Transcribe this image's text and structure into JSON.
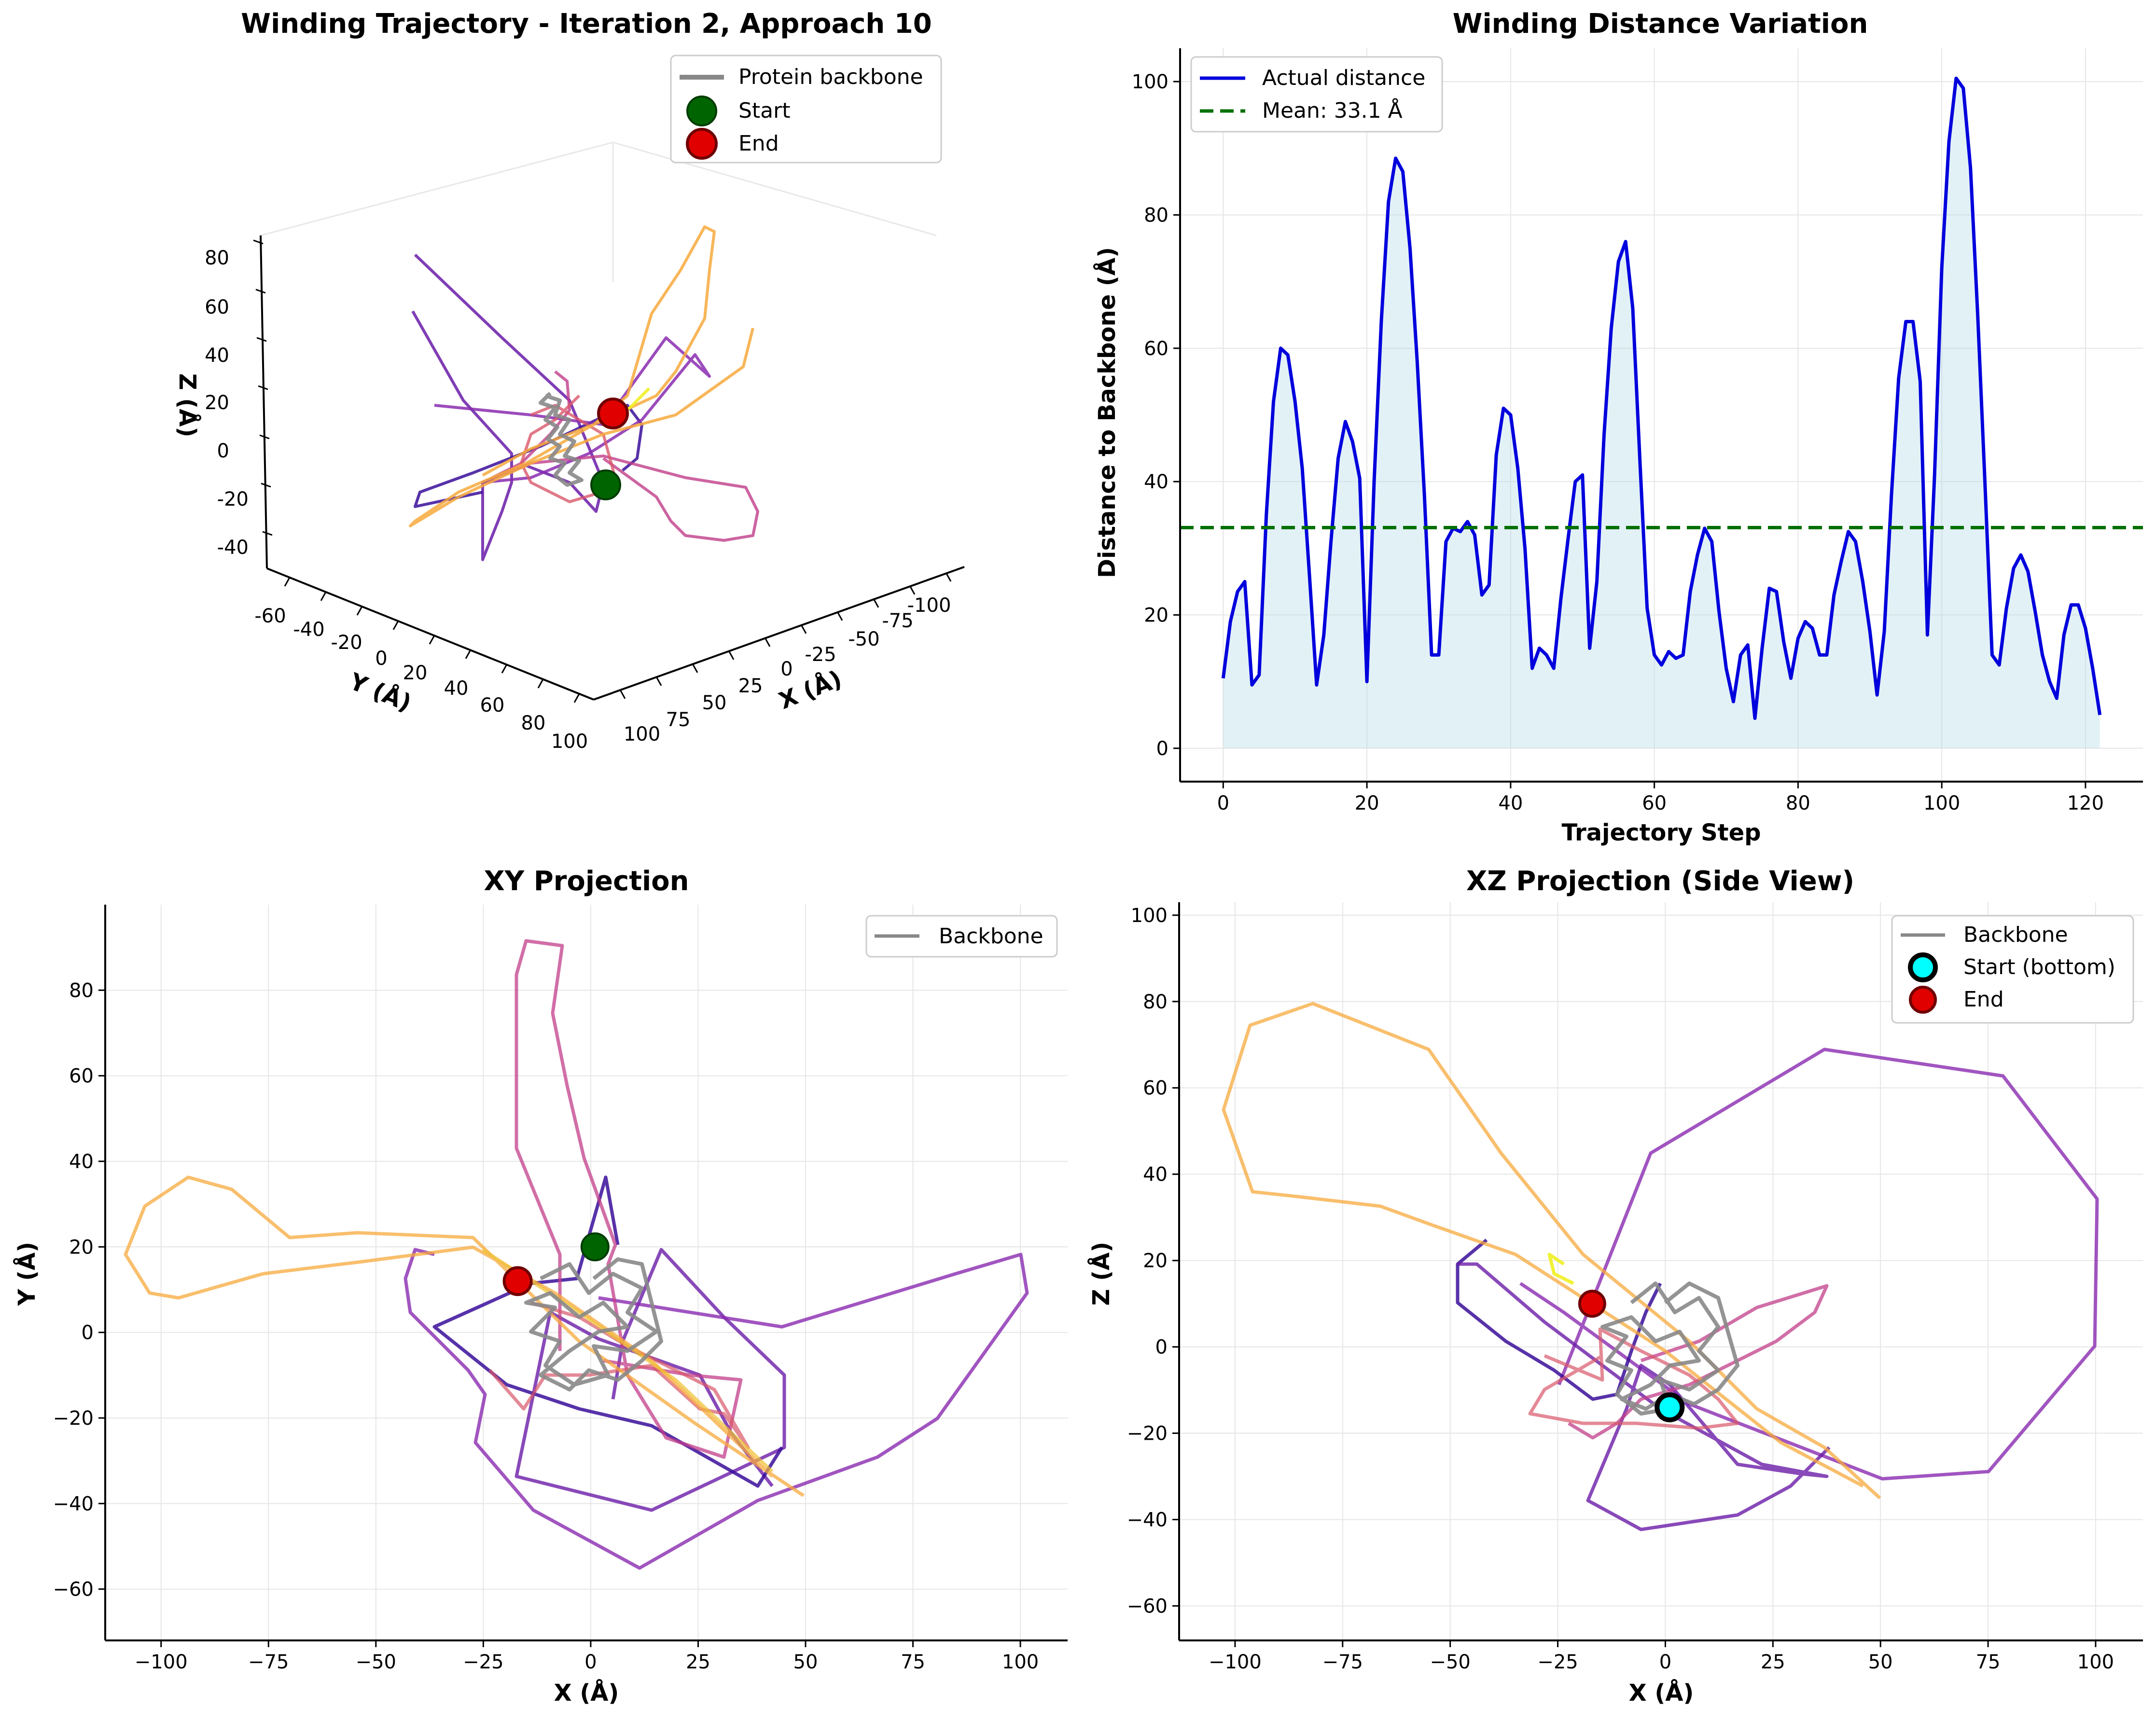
{
  "panel3d": {
    "title": "Winding Trajectory - Iteration 2, Approach 10",
    "xlabel": "X (Å)",
    "ylabel": "Y (Å)",
    "zlabel": "Z (Å)",
    "xticks": [
      -100,
      -75,
      -50,
      -25,
      0,
      25,
      50,
      75,
      100
    ],
    "yticks": [
      -60,
      -40,
      -20,
      0,
      20,
      40,
      60,
      80,
      100
    ],
    "zticks": [
      -40,
      -20,
      0,
      20,
      40,
      60,
      80
    ],
    "legend": {
      "backbone": "Protein backbone",
      "start": "Start",
      "end": "End"
    },
    "colors": {
      "backbone": "#888888",
      "start": "#006400",
      "end": "#e00000"
    }
  },
  "panelDist": {
    "title": "Winding Distance Variation",
    "xlabel": "Trajectory Step",
    "ylabel": "Distance to Backbone (Å)",
    "legend": {
      "actual": "Actual distance",
      "mean": "Mean: 33.1 Å"
    },
    "colors": {
      "line": "#0000dd",
      "fill": "#add8e6",
      "mean": "#007000"
    }
  },
  "panelXY": {
    "title": "XY Projection",
    "xlabel": "X (Å)",
    "ylabel": "Y (Å)",
    "legend": {
      "backbone": "Backbone"
    }
  },
  "panelXZ": {
    "title": "XZ Projection (Side View)",
    "xlabel": "X (Å)",
    "ylabel": "Z (Å)",
    "legend": {
      "backbone": "Backbone",
      "start": "Start (bottom)",
      "end": "End"
    },
    "colors": {
      "start": "#00ffff",
      "end": "#e00000"
    }
  },
  "chart_data": [
    {
      "type": "line",
      "title": "Winding Trajectory - Iteration 2, Approach 10",
      "projection": "3d",
      "xlabel": "X (Å)",
      "ylabel": "Y (Å)",
      "zlabel": "Z (Å)",
      "xlim": [
        -105,
        105
      ],
      "ylim": [
        -65,
        100
      ],
      "zlim": [
        -45,
        90
      ],
      "series": [
        {
          "name": "Protein backbone",
          "note": "grey coil near origin"
        },
        {
          "name": "Start",
          "x": [
            1
          ],
          "y": [
            20
          ],
          "z": [
            -14
          ]
        },
        {
          "name": "End",
          "x": [
            -17
          ],
          "y": [
            12
          ],
          "z": [
            10
          ]
        }
      ],
      "trajectory_colormap": "plasma"
    },
    {
      "type": "line",
      "title": "Winding Distance Variation",
      "xlabel": "Trajectory Step",
      "ylabel": "Distance to Backbone (Å)",
      "xlim": [
        -6,
        128
      ],
      "ylim": [
        -5,
        105
      ],
      "xticks": [
        0,
        20,
        40,
        60,
        80,
        100,
        120
      ],
      "yticks": [
        0,
        20,
        40,
        60,
        80,
        100
      ],
      "grid": true,
      "legend": "top-left",
      "series": [
        {
          "name": "Actual distance",
          "x": [
            0,
            1,
            2,
            3,
            4,
            5,
            6,
            7,
            8,
            9,
            10,
            11,
            12,
            13,
            14,
            15,
            16,
            17,
            18,
            19,
            20,
            21,
            22,
            23,
            24,
            25,
            26,
            27,
            28,
            29,
            30,
            31,
            32,
            33,
            34,
            35,
            36,
            37,
            38,
            39,
            40,
            41,
            42,
            43,
            44,
            45,
            46,
            47,
            48,
            49,
            50,
            51,
            52,
            53,
            54,
            55,
            56,
            57,
            58,
            59,
            60,
            61,
            62,
            63,
            64,
            65,
            66,
            67,
            68,
            69,
            70,
            71,
            72,
            73,
            74,
            75,
            76,
            77,
            78,
            79,
            80,
            81,
            82,
            83,
            84,
            85,
            86,
            87,
            88,
            89,
            90,
            91,
            92,
            93,
            94,
            95,
            96,
            97,
            98,
            99,
            100,
            101,
            102,
            103,
            104,
            105,
            106,
            107,
            108,
            109,
            110,
            111,
            112,
            113,
            114,
            115,
            116,
            117,
            118,
            119,
            120,
            121,
            122
          ],
          "y": [
            10.5,
            19,
            23.5,
            25,
            9.5,
            11,
            35,
            52,
            60,
            59,
            52,
            42,
            26,
            9.5,
            17,
            31,
            43.5,
            49,
            46,
            40.5,
            10,
            40,
            64,
            82,
            88.5,
            86.5,
            75,
            58,
            38,
            14,
            14,
            31,
            33,
            32.5,
            34,
            32,
            23,
            24.5,
            44,
            51,
            50,
            42,
            30,
            12,
            15,
            14,
            12,
            22.5,
            31.5,
            40,
            41,
            15,
            25,
            47,
            63,
            73,
            76,
            66,
            43,
            21,
            14,
            12.5,
            14.5,
            13.5,
            14,
            23.5,
            29,
            33,
            31,
            20.5,
            12,
            7,
            14,
            15.5,
            4.5,
            15,
            24,
            23.5,
            16,
            10.5,
            16.5,
            19,
            18,
            14,
            14,
            23,
            28,
            32.5,
            31,
            25,
            17.5,
            8,
            17.5,
            38,
            55.5,
            64,
            64,
            55,
            17,
            41,
            72,
            91,
            100.5,
            99,
            87,
            65,
            40,
            14,
            12.5,
            21,
            27,
            29,
            26.5,
            20.5,
            14,
            10,
            7.5,
            17,
            21.5,
            21.5,
            18,
            12,
            5
          ]
        },
        {
          "name": "Mean: 33.1 Å",
          "y": [
            33.1
          ]
        }
      ]
    },
    {
      "type": "line",
      "title": "XY Projection",
      "xlabel": "X (Å)",
      "ylabel": "Y (Å)",
      "xlim": [
        -113,
        111
      ],
      "ylim": [
        -72,
        100
      ],
      "xticks": [
        -100,
        -75,
        -50,
        -25,
        0,
        25,
        50,
        75,
        100
      ],
      "yticks": [
        -60,
        -40,
        -20,
        0,
        20,
        40,
        60,
        80
      ],
      "grid": true,
      "legend": "top-right",
      "series": [
        {
          "name": "Backbone",
          "note": "grey coil spanning x -15..18, y -22..18"
        },
        {
          "name": "Start",
          "x": [
            1
          ],
          "y": [
            20
          ]
        },
        {
          "name": "End",
          "x": [
            -17
          ],
          "y": [
            12
          ]
        }
      ],
      "trajectory_colormap": "plasma"
    },
    {
      "type": "line",
      "title": "XZ Projection (Side View)",
      "xlabel": "X (Å)",
      "ylabel": "Z (Å)",
      "xlim": [
        -113,
        111
      ],
      "ylim": [
        -68,
        103
      ],
      "xticks": [
        -100,
        -75,
        -50,
        -25,
        0,
        25,
        50,
        75,
        100
      ],
      "yticks": [
        -60,
        -40,
        -20,
        0,
        20,
        40,
        60,
        80,
        100
      ],
      "grid": true,
      "legend": "top-right",
      "series": [
        {
          "name": "Backbone",
          "note": "grey coil spanning x -18..12, z -14..18"
        },
        {
          "name": "Start (bottom)",
          "x": [
            1
          ],
          "z": [
            -14
          ]
        },
        {
          "name": "End",
          "x": [
            -17
          ],
          "z": [
            10
          ]
        }
      ],
      "trajectory_colormap": "plasma"
    }
  ]
}
